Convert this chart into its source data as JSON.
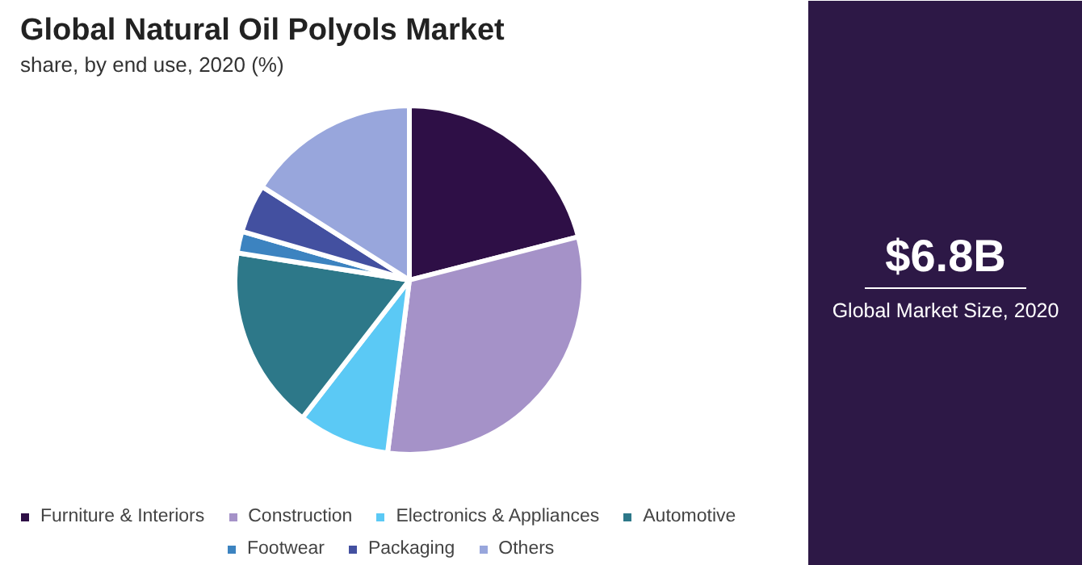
{
  "chart_data": {
    "type": "pie",
    "title": "Global Natural Oil Polyols Market",
    "subtitle": "share, by end use, 2020 (%)",
    "categories": [
      "Furniture & Interiors",
      "Construction",
      "Electronics & Appliances",
      "Automotive",
      "Footwear",
      "Packaging",
      "Others"
    ],
    "values": [
      21,
      31,
      8.5,
      17,
      2,
      4.5,
      16
    ],
    "colors": [
      "#2e0f46",
      "#a592c8",
      "#5bc9f5",
      "#2d7889",
      "#3c83c0",
      "#4350a0",
      "#98a6dc"
    ],
    "annotations": [
      "$6.8B",
      "Global Market Size, 2020"
    ],
    "legend": "bottom"
  }
}
